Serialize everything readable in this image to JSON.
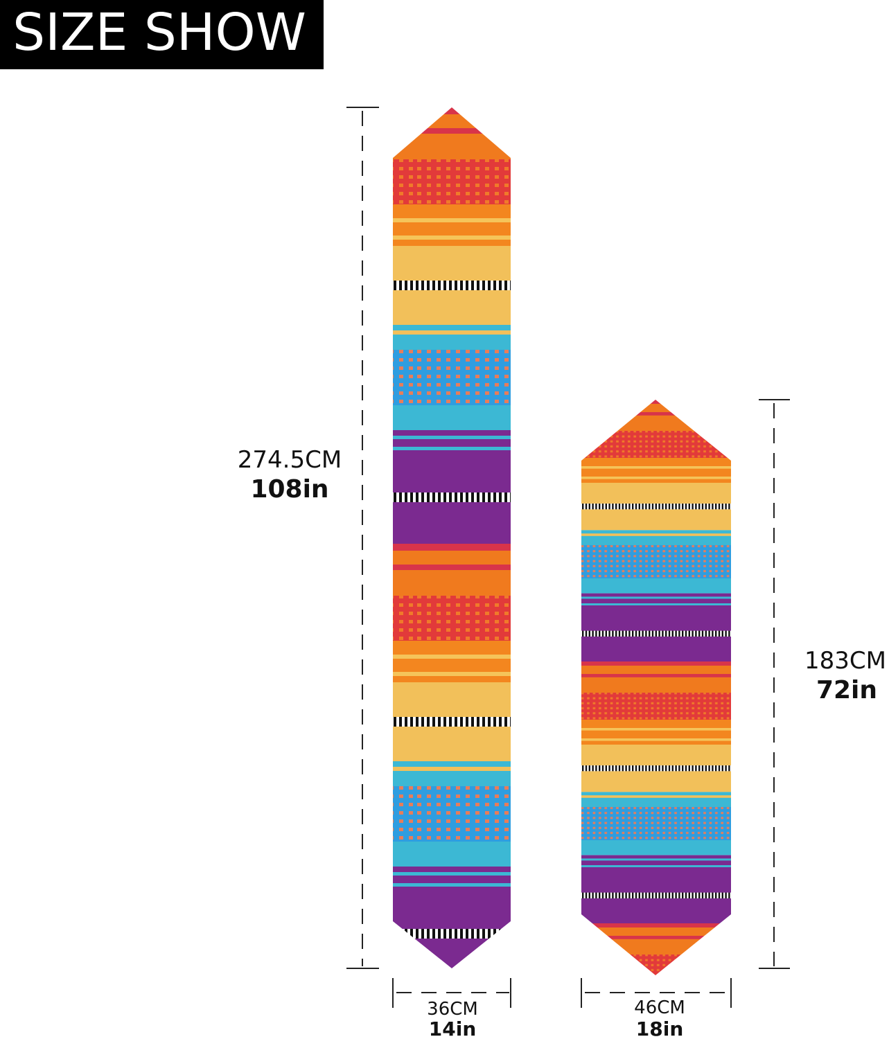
{
  "header": {
    "title": "SIZE SHOW"
  },
  "runners": [
    {
      "length_cm": "274.5CM",
      "length_in": "108in",
      "width_cm": "36CM",
      "width_in": "14in"
    },
    {
      "length_cm": "183CM",
      "length_in": "72in",
      "width_cm": "46CM",
      "width_in": "18in"
    }
  ]
}
